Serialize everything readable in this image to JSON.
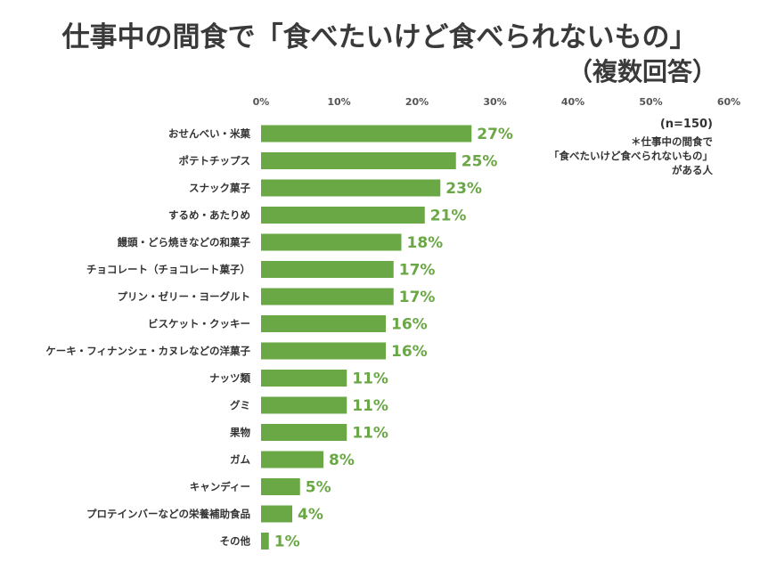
{
  "chart_data": {
    "type": "bar",
    "orientation": "horizontal",
    "title": "仕事中の間食で「食べたいけど食べられないもの」",
    "subtitle": "（複数回答）",
    "categories": [
      "おせんべい・米菓",
      "ポテトチップス",
      "スナック菓子",
      "するめ・あたりめ",
      "饅頭・どら焼きなどの和菓子",
      "チョコレート（チョコレート菓子）",
      "プリン・ゼリー・ヨーグルト",
      "ビスケット・クッキー",
      "ケーキ・フィナンシェ・カヌレなどの洋菓子",
      "ナッツ類",
      "グミ",
      "果物",
      "ガム",
      "キャンディー",
      "プロテインバーなどの栄養補助食品",
      "その他"
    ],
    "values": [
      27,
      25,
      23,
      21,
      18,
      17,
      17,
      16,
      16,
      11,
      11,
      11,
      8,
      5,
      4,
      1
    ],
    "value_labels": [
      "27%",
      "25%",
      "23%",
      "21%",
      "18%",
      "17%",
      "17%",
      "16%",
      "16%",
      "11%",
      "11%",
      "11%",
      "8%",
      "5%",
      "4%",
      "1%"
    ],
    "xlim": [
      0,
      60
    ],
    "xticks": [
      0,
      10,
      20,
      30,
      40,
      50,
      60
    ],
    "xtick_labels": [
      "0%",
      "10%",
      "20%",
      "30%",
      "40%",
      "50%",
      "60%"
    ],
    "xaxis_position": "top",
    "grid": false,
    "bar_color": "#6aa745",
    "label_color": "#6aa745",
    "annotation": {
      "n": "(n=150)",
      "lines": [
        "＊仕事中の間食で",
        "「食べたいけど食べられないもの」",
        "がある人"
      ]
    }
  }
}
